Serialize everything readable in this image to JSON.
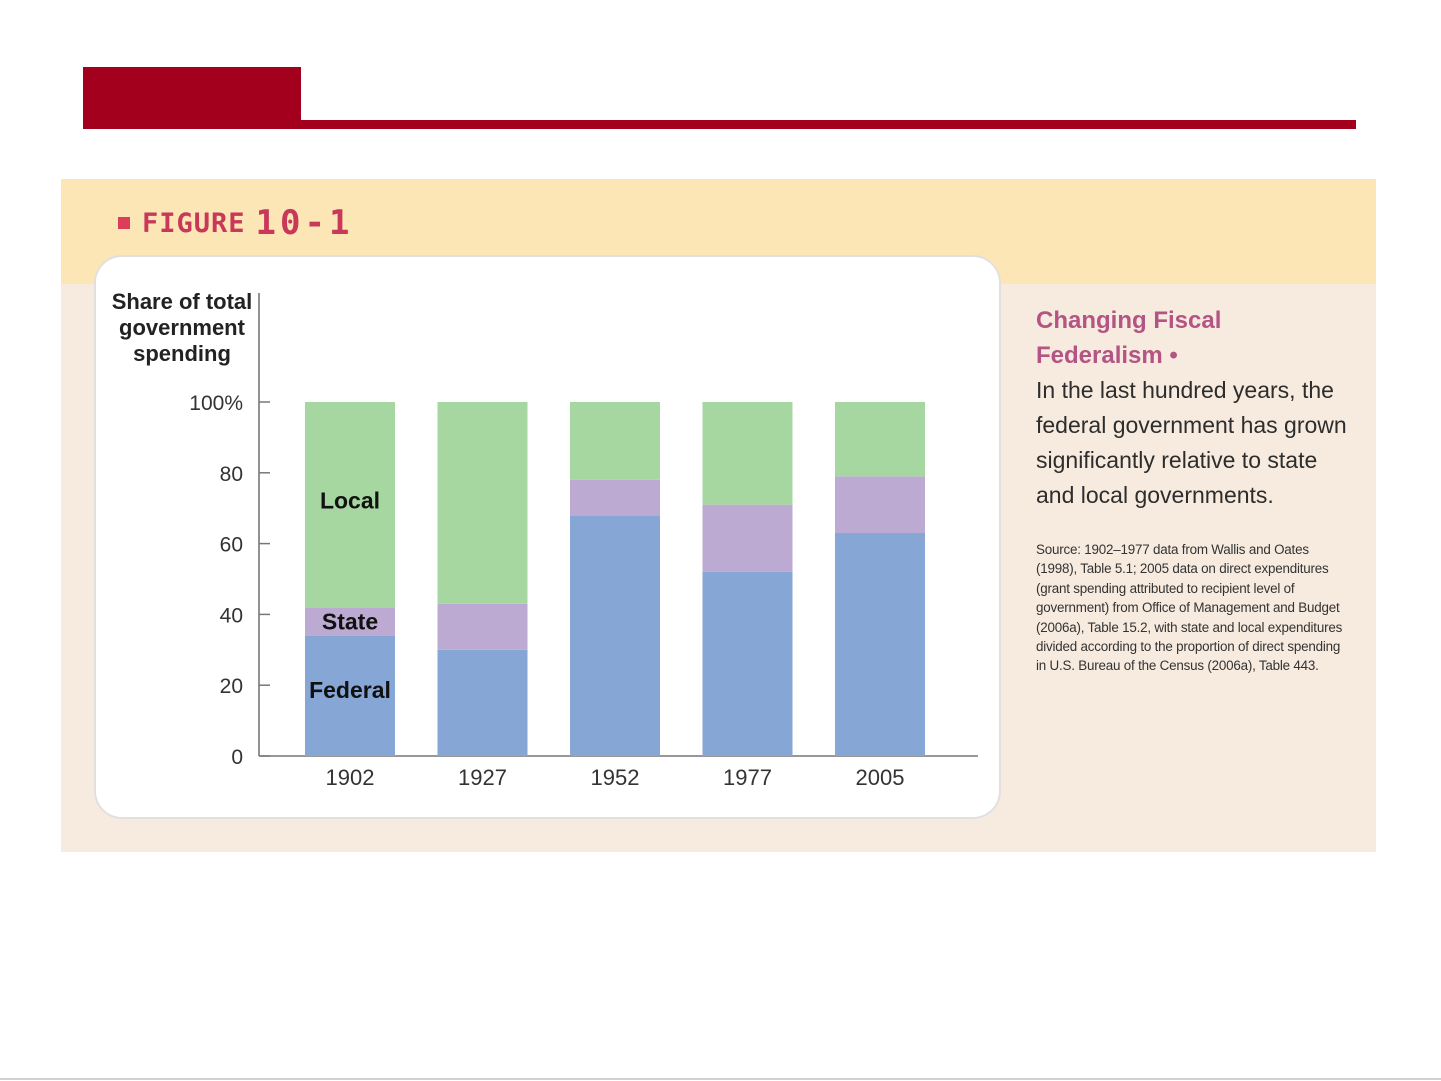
{
  "figure": {
    "label": "FIGURE",
    "number": "10-1"
  },
  "caption": {
    "title": "Changing Fiscal Federalism •",
    "text": "In the last hundred years, the federal government has grown significantly relative to state and local governments.",
    "source": "Source: 1902–1977 data from Wallis and Oates (1998), Table 5.1; 2005 data on direct expenditures (grant spending attributed to recipient level of government) from Office of Management and Budget (2006a), Table 15.2, with state and local expenditures divided according to the proportion of direct spending in U.S. Bureau of the Census (2006a), Table 443."
  },
  "chart_data": {
    "type": "bar",
    "stacked": true,
    "ylabel": [
      "Share of total",
      "government",
      "spending"
    ],
    "categories": [
      "1902",
      "1927",
      "1952",
      "1977",
      "2005"
    ],
    "yticks": [
      "100%",
      "80",
      "60",
      "40",
      "20",
      "0"
    ],
    "ylim": [
      0,
      100
    ],
    "segment_labels": {
      "Federal": "Federal",
      "State": "State",
      "Local": "Local"
    },
    "series": [
      {
        "name": "Federal",
        "values": [
          34,
          30,
          68,
          52,
          63
        ],
        "color": "#86a6d6"
      },
      {
        "name": "State",
        "values": [
          8,
          13,
          10,
          19,
          16
        ],
        "color": "#bcaad2"
      },
      {
        "name": "Local",
        "values": [
          58,
          57,
          22,
          29,
          21
        ],
        "color": "#a7d7a1"
      }
    ],
    "grid": false,
    "legend": "inline-on-first-bar"
  }
}
